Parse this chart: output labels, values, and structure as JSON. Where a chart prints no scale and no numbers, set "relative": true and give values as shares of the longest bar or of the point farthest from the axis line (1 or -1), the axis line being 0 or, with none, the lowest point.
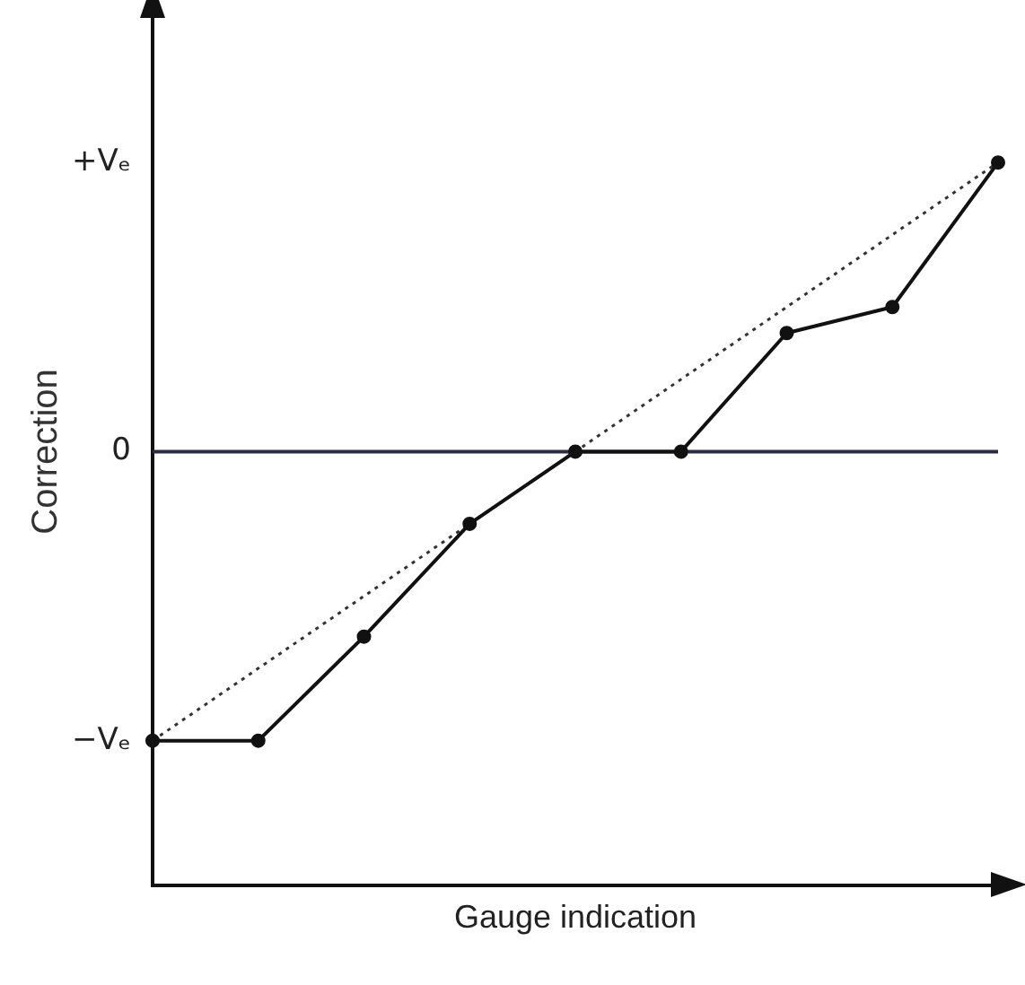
{
  "chart_data": {
    "type": "line",
    "xlabel": "Gauge indication",
    "ylabel": "Correction",
    "categories": [
      null,
      null,
      null,
      null,
      null,
      null,
      null,
      null,
      null
    ],
    "series": [
      {
        "color": "#111111",
        "values": [
          -1,
          -1,
          -0.64,
          -0.25,
          0,
          0,
          0.41,
          0.5,
          1
        ],
        "marker": "circle",
        "line_style": "solid"
      },
      {
        "color": "#333333",
        "values": [
          -1,
          null,
          null,
          null,
          null,
          null,
          null,
          null,
          1
        ],
        "marker": "none",
        "line_style": "dotted"
      }
    ],
    "relative": true,
    "annotations": [
      "+Vₑ",
      "−Vₑ"
    ],
    "ref_lines": [
      {
        "axis": "y",
        "value": 0,
        "color": "#2a2a44",
        "line_style": "solid",
        "label": "0"
      }
    ],
    "grid": false,
    "legend": false
  }
}
